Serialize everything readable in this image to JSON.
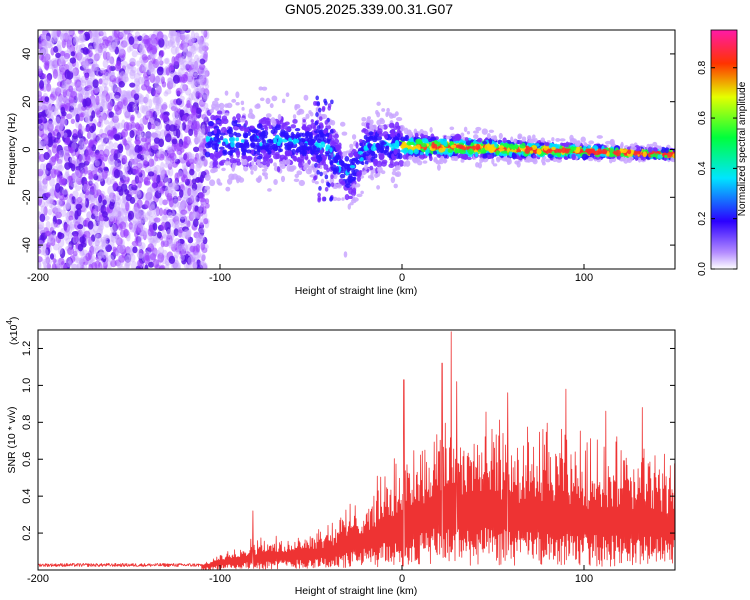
{
  "title": "GN05.2025.339.00.31.G07",
  "chart_data": [
    {
      "type": "heatmap",
      "title": "",
      "xlabel": "Height of straight line (km)",
      "ylabel": "Frequency (Hz)",
      "xlim": [
        -200,
        150
      ],
      "ylim": [
        -50,
        50
      ],
      "x_ticks": [
        -200,
        -100,
        0,
        100
      ],
      "y_ticks": [
        -40,
        -20,
        0,
        20,
        40
      ],
      "colorbar": {
        "label": "Normalized spectral amplitude",
        "range": [
          0.0,
          0.95
        ],
        "ticks": [
          0.0,
          0.2,
          0.4,
          0.6,
          0.8
        ],
        "colors": [
          "#ffffff",
          "#9a3cff",
          "#1a00ff",
          "#00e5ff",
          "#00ff3c",
          "#e5ff00",
          "#ff8c00",
          "#ff0000",
          "#ff1aa8"
        ]
      },
      "features": {
        "noise_region_x": [
          -200,
          -107
        ],
        "noise_spread_hz": [
          -50,
          50
        ],
        "signal_x": [
          -107,
          150
        ],
        "signal_start_freq_hz": 4,
        "signal_end_freq_hz": -2,
        "dip_near_x": -30,
        "dip_freq_hz": -10
      }
    },
    {
      "type": "line",
      "title": "",
      "xlabel": "Height of straight line (km)",
      "ylabel": "SNR (10 * v/v)",
      "y_multiplier_label": "(x10",
      "y_multiplier_exp": "4",
      "xlim": [
        -200,
        150
      ],
      "ylim": [
        0.0,
        1.3
      ],
      "x_ticks": [
        -200,
        -100,
        0,
        100
      ],
      "y_ticks": [
        0.2,
        0.4,
        0.6,
        0.8,
        1.0,
        1.2
      ],
      "series": [
        {
          "color": "#ee3333",
          "envelope_x": [
            -200,
            -110,
            -95,
            -80,
            -60,
            -40,
            -20,
            0,
            10,
            25,
            50,
            80,
            100,
            150
          ],
          "envelope_top": [
            0.03,
            0.03,
            0.12,
            0.2,
            0.18,
            0.3,
            0.45,
            0.68,
            0.8,
            0.9,
            0.88,
            0.85,
            0.8,
            0.72
          ],
          "envelope_base": [
            0.02,
            0.02,
            0.06,
            0.08,
            0.1,
            0.12,
            0.2,
            0.3,
            0.35,
            0.4,
            0.38,
            0.34,
            0.33,
            0.3
          ],
          "peaks": [
            {
              "x": -82,
              "y": 0.32
            },
            {
              "x": 1,
              "y": 1.03
            },
            {
              "x": 22,
              "y": 1.12
            },
            {
              "x": 27,
              "y": 1.29
            },
            {
              "x": 30,
              "y": 1.02
            },
            {
              "x": 58,
              "y": 0.96
            },
            {
              "x": 90,
              "y": 0.98
            },
            {
              "x": 112,
              "y": 0.86
            },
            {
              "x": 132,
              "y": 0.88
            }
          ]
        }
      ]
    }
  ]
}
